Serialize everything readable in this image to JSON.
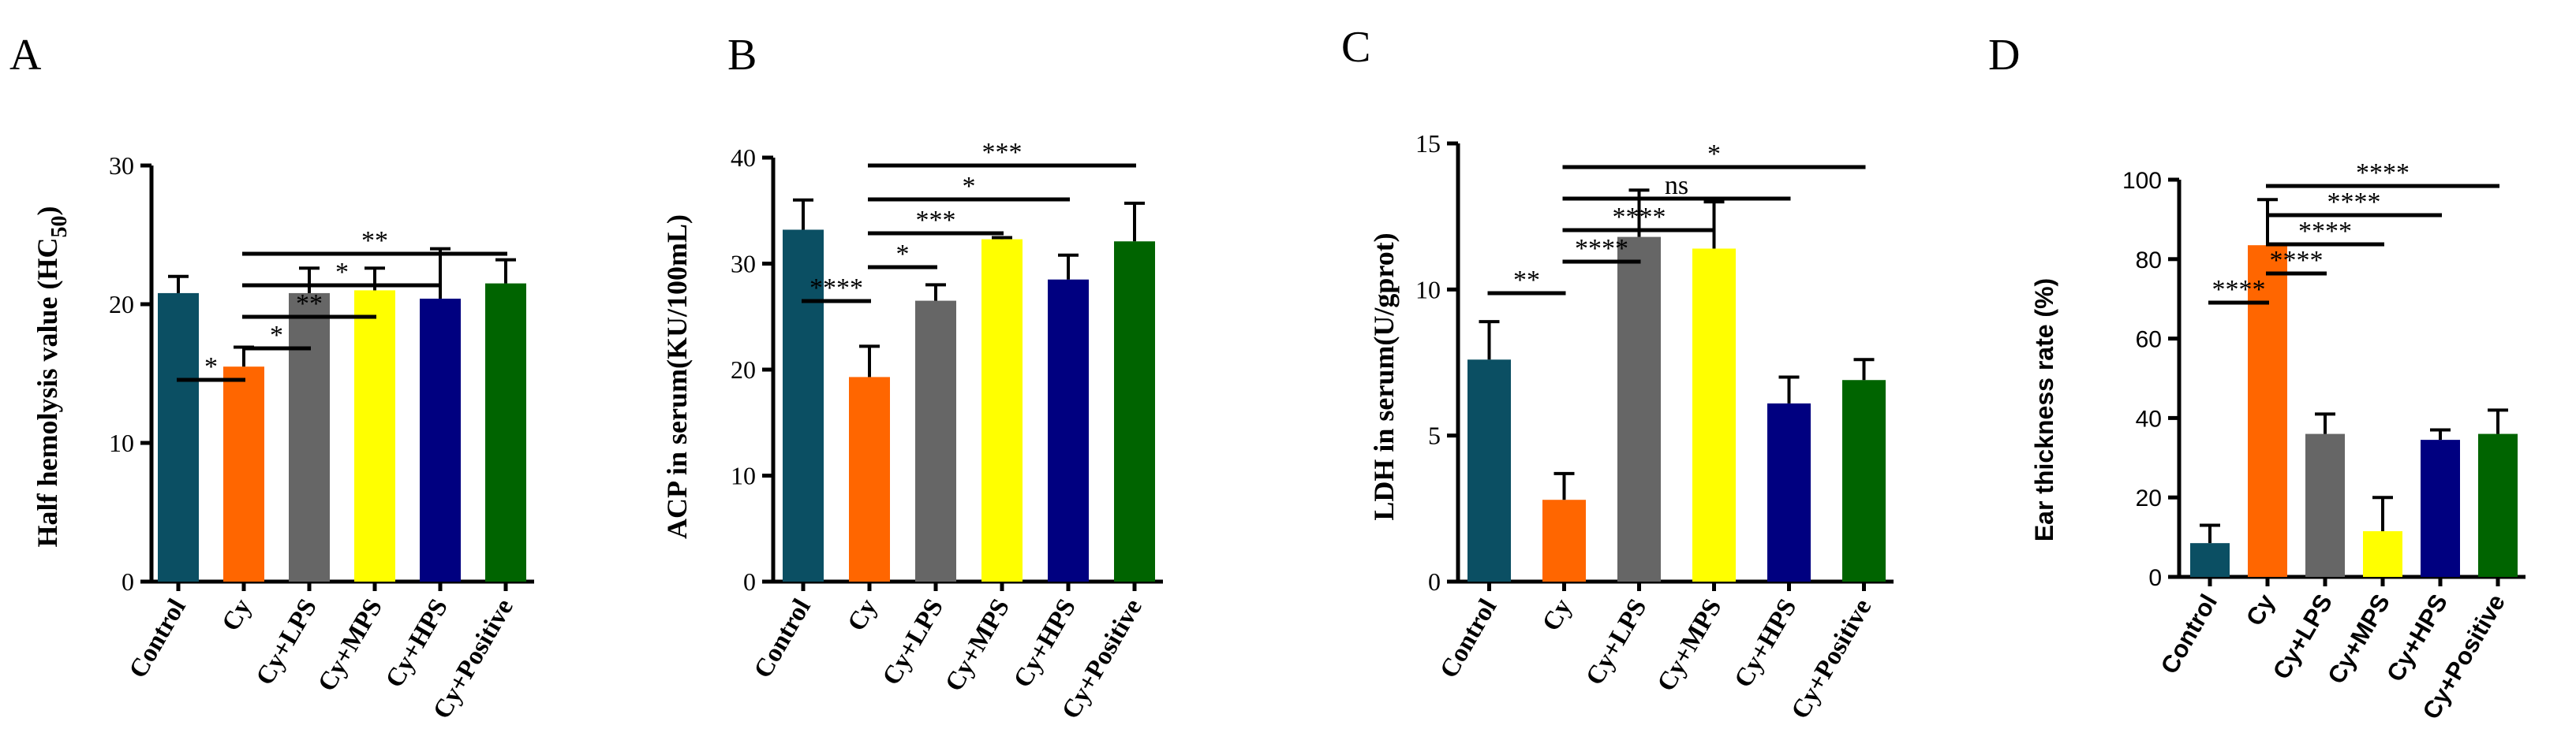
{
  "chart_data": [
    {
      "type": "bar",
      "panel": "A",
      "ylabel": "Half hemolysis value (HC",
      "ylabel_sub": "50",
      "ylabel_tail": ")",
      "categories": [
        "Control",
        "Cy",
        "Cy+LPS",
        "Cy+MPS",
        "Cy+HPS",
        "Cy+Positive"
      ],
      "values": [
        20.8,
        15.5,
        20.8,
        21.0,
        20.4,
        21.5
      ],
      "errors": [
        1.2,
        1.4,
        1.8,
        1.6,
        3.6,
        1.7
      ],
      "colors": [
        "#0b4f63",
        "#ff6600",
        "#666666",
        "#ffff00",
        "#000080",
        "#006400"
      ],
      "ylim": [
        0,
        30
      ],
      "yticks": [
        0,
        10,
        20,
        30
      ],
      "significance": [
        {
          "from": 0,
          "to": 1,
          "label": "*"
        },
        {
          "from": 1,
          "to": 2,
          "label": "*"
        },
        {
          "from": 1,
          "to": 3,
          "label": "**"
        },
        {
          "from": 1,
          "to": 4,
          "label": "*"
        },
        {
          "from": 1,
          "to": 5,
          "label": "**"
        }
      ]
    },
    {
      "type": "bar",
      "panel": "B",
      "ylabel": "ACP in serum(KU/100mL)",
      "categories": [
        "Control",
        "Cy",
        "Cy+LPS",
        "Cy+MPS",
        "Cy+HPS",
        "Cy+Positive"
      ],
      "values": [
        33.2,
        19.3,
        26.5,
        32.3,
        28.5,
        32.1
      ],
      "errors": [
        2.8,
        2.9,
        1.5,
        0.15,
        2.3,
        3.6
      ],
      "colors": [
        "#0b4f63",
        "#ff6600",
        "#666666",
        "#ffff00",
        "#000080",
        "#006400"
      ],
      "ylim": [
        0,
        40
      ],
      "yticks": [
        0,
        10,
        20,
        30,
        40
      ],
      "significance": [
        {
          "from": 0,
          "to": 1,
          "label": "****"
        },
        {
          "from": 1,
          "to": 2,
          "label": "*"
        },
        {
          "from": 1,
          "to": 3,
          "label": "***"
        },
        {
          "from": 1,
          "to": 4,
          "label": "*"
        },
        {
          "from": 1,
          "to": 5,
          "label": "***"
        }
      ]
    },
    {
      "type": "bar",
      "panel": "C",
      "ylabel": "LDH in serum(U/gprot)",
      "categories": [
        "Control",
        "Cy",
        "Cy+LPS",
        "Cy+MPS",
        "Cy+HPS",
        "Cy+Positive"
      ],
      "values": [
        7.6,
        2.8,
        11.8,
        11.4,
        6.1,
        6.9
      ],
      "errors": [
        1.3,
        0.9,
        1.6,
        1.6,
        0.9,
        0.7
      ],
      "colors": [
        "#0b4f63",
        "#ff6600",
        "#666666",
        "#ffff00",
        "#000080",
        "#006400"
      ],
      "ylim": [
        0,
        15
      ],
      "yticks": [
        0,
        5,
        10,
        15
      ],
      "significance": [
        {
          "from": 0,
          "to": 1,
          "label": "**"
        },
        {
          "from": 1,
          "to": 2,
          "label": "****"
        },
        {
          "from": 1,
          "to": 3,
          "label": "****"
        },
        {
          "from": 1,
          "to": 4,
          "label": "ns"
        },
        {
          "from": 1,
          "to": 5,
          "label": "*"
        }
      ]
    },
    {
      "type": "bar",
      "panel": "D",
      "ylabel": "Ear thickness rate (%)",
      "categories": [
        "Control",
        "Cy",
        "Cy+LPS",
        "Cy+MPS",
        "Cy+HPS",
        "Cy+Positive"
      ],
      "values": [
        8.5,
        83.5,
        36.0,
        11.5,
        34.5,
        36.0
      ],
      "errors": [
        4.5,
        11.5,
        5.0,
        8.5,
        2.5,
        6.0
      ],
      "colors": [
        "#0b4f63",
        "#ff6600",
        "#666666",
        "#ffff00",
        "#000080",
        "#006400"
      ],
      "ylim": [
        0,
        100
      ],
      "yticks": [
        0,
        20,
        40,
        60,
        80,
        100
      ],
      "significance": [
        {
          "from": 0,
          "to": 1,
          "label": "****"
        },
        {
          "from": 1,
          "to": 2,
          "label": "****"
        },
        {
          "from": 1,
          "to": 3,
          "label": "****"
        },
        {
          "from": 1,
          "to": 4,
          "label": "****"
        },
        {
          "from": 1,
          "to": 5,
          "label": "****"
        }
      ]
    }
  ]
}
